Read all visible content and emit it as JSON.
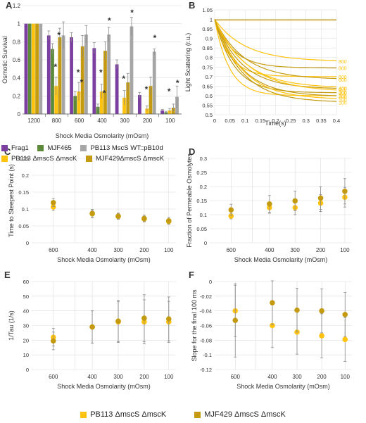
{
  "colors": {
    "frag1": "#7b3fa0",
    "mjf465": "#5d8a3a",
    "wt": "#a6a6a6",
    "pb113": "#ffc20e",
    "mjf429": "#c39a10",
    "grid": "#dcdcdc",
    "axis": "#555555",
    "err": "#8a8a8a"
  },
  "legend_a": [
    "Frag1",
    "MJF465",
    "PB113 MscS WT::pB10d",
    "PB113 ΔmscS ΔmscK",
    "MJF429ΔmscS ΔmscK"
  ],
  "legend_bottom": [
    "PB113 ΔmscS ΔmscK",
    "MJF429 ΔmscS ΔmscK"
  ],
  "chart_data": [
    {
      "panel": "A",
      "type": "bar",
      "ylabel": "Osmotic Survival",
      "xlabel": "Shock Media Osmolarity (mOsm)",
      "categories": [
        "1200",
        "800",
        "600",
        "400",
        "300",
        "200",
        "100"
      ],
      "ylim": [
        0,
        1.2
      ],
      "yticks": [
        "0",
        "0.2",
        "0.4",
        "0.6",
        "0.8",
        "1",
        "1.2"
      ],
      "series": [
        {
          "name": "Frag1",
          "values": [
            1.0,
            0.87,
            0.85,
            0.73,
            0.55,
            0.21,
            0.04
          ],
          "errors": [
            0,
            0.05,
            0.05,
            0.06,
            0.05,
            0.03,
            0.01
          ]
        },
        {
          "name": "MJF465",
          "values": [
            1.0,
            0.72,
            0.2,
            0.08,
            0.0,
            0.0,
            0.02
          ],
          "errors": [
            0,
            0.06,
            0.05,
            0.03,
            0,
            0,
            0.01
          ]
        },
        {
          "name": "PB113 MscS WT::pB10d",
          "values": [
            1.0,
            0.87,
            0.88,
            0.88,
            0.97,
            0.69,
            0.19
          ],
          "errors": [
            0,
            0.15,
            0.1,
            0.08,
            0.1,
            0.03,
            0.12
          ]
        },
        {
          "name": "PB113 ΔmscS ΔmscK",
          "values": [
            1.0,
            0.31,
            0.25,
            0.25,
            0.18,
            0.06,
            0.04
          ],
          "errors": [
            0,
            0.1,
            0.1,
            0.08,
            0.08,
            0.03,
            0.02
          ]
        },
        {
          "name": "MJF429ΔmscS ΔmscK",
          "values": [
            1.0,
            0.85,
            0.75,
            0.7,
            0.35,
            0.31,
            0.07
          ],
          "errors": [
            0,
            0.1,
            0.12,
            0.1,
            0.1,
            0.1,
            0.04
          ]
        }
      ],
      "stars": [
        "*"
      ]
    },
    {
      "panel": "B",
      "type": "line",
      "ylabel": "Light Scattering (r.u.)",
      "xlabel": "Time(s)",
      "xlim": [
        0,
        0.4
      ],
      "ylim": [
        0.5,
        1.05
      ],
      "xticks": [
        "0",
        "0.05",
        "0.1",
        "0.15",
        "0.2",
        "0.25",
        "0.3",
        "0.35",
        "0.4"
      ],
      "yticks": [
        "0.5",
        "0.55",
        "0.6",
        "0.65",
        "0.7",
        "0.75",
        "0.8",
        "0.85",
        "0.9",
        "0.95",
        "1",
        "1.05"
      ],
      "series": [
        {
          "label": "800",
          "end": 0.78
        },
        {
          "label": "800",
          "end": 0.745
        },
        {
          "label": "600",
          "end": 0.7
        },
        {
          "label": "600",
          "end": 0.685
        },
        {
          "label": "400",
          "end": 0.64
        },
        {
          "label": "400",
          "end": 0.635
        },
        {
          "label": "300",
          "end": 0.62
        },
        {
          "label": "300",
          "end": 0.615
        },
        {
          "label": "200",
          "end": 0.6
        },
        {
          "label": "200",
          "end": 0.595
        },
        {
          "label": "100",
          "end": 0.58
        },
        {
          "label": "100",
          "end": 0.565
        }
      ]
    },
    {
      "panel": "C",
      "type": "scatter",
      "ylabel": "Time to Steepest Point (s)",
      "xlabel": "Shock Media Osmolarity (mOsm)",
      "categories": [
        "600",
        "400",
        "300",
        "200",
        "100"
      ],
      "ylim": [
        0,
        0.25
      ],
      "series": [
        {
          "name": "PB113 ΔmscS ΔmscK",
          "values": [
            0.106,
            0.086,
            0.078,
            0.071,
            0.063
          ],
          "errors": [
            0.01,
            0.01,
            0.008,
            0.008,
            0.008
          ]
        },
        {
          "name": "MJF429 ΔmscS ΔmscK",
          "values": [
            0.119,
            0.087,
            0.079,
            0.072,
            0.065
          ],
          "errors": [
            0.012,
            0.012,
            0.009,
            0.01,
            0.01
          ]
        }
      ]
    },
    {
      "panel": "D",
      "type": "scatter",
      "ylabel": "Fraction of Permeable Osmolytes",
      "xlabel": "Shock Media Osmolarity (mOsm)",
      "categories": [
        "600",
        "400",
        "300",
        "200",
        "100"
      ],
      "ylim": [
        0,
        0.3
      ],
      "series": [
        {
          "name": "PB113 ΔmscS ΔmscK",
          "values": [
            0.095,
            0.125,
            0.125,
            0.141,
            0.162
          ],
          "errors": [
            0.01,
            0.02,
            0.025,
            0.03,
            0.035
          ]
        },
        {
          "name": "MJF429 ΔmscS ΔmscK",
          "values": [
            0.117,
            0.138,
            0.149,
            0.159,
            0.183
          ],
          "errors": [
            0.02,
            0.03,
            0.035,
            0.04,
            0.045
          ]
        }
      ]
    },
    {
      "panel": "E",
      "type": "scatter",
      "ylabel": "1/Tau (1/s)",
      "xlabel": "Shock Media Osmolarity (mOsm)",
      "categories": [
        "600",
        "400",
        "300",
        "200",
        "100"
      ],
      "ylim": [
        0,
        60
      ],
      "series": [
        {
          "name": "PB113 ΔmscS ΔmscK",
          "values": [
            22,
            29,
            32.5,
            32.5,
            32.5
          ],
          "errors": [
            6,
            11,
            14,
            15,
            14
          ]
        },
        {
          "name": "MJF429 ΔmscS ΔmscK",
          "values": [
            19.5,
            29,
            33,
            35,
            34.5
          ],
          "errors": [
            6,
            11,
            14,
            16,
            15
          ]
        }
      ]
    },
    {
      "panel": "F",
      "type": "scatter",
      "ylabel": "Slope for the final 100 ms",
      "xlabel": "Shock Media Osmolarity (mOsm)",
      "categories": [
        "600",
        "400",
        "300",
        "200",
        "100"
      ],
      "ylim": [
        -0.12,
        0
      ],
      "yticks": [
        "0",
        "-0.02",
        "-0.04",
        "-0.06",
        "-0.08",
        "-0.1",
        "-0.12"
      ],
      "series": [
        {
          "name": "PB113 ΔmscS ΔmscK",
          "values": [
            -0.04,
            -0.06,
            -0.069,
            -0.074,
            -0.079
          ],
          "errors": [
            0.035,
            0.03,
            0.03,
            0.03,
            0.03
          ]
        },
        {
          "name": "MJF429 ΔmscS ΔmscK",
          "values": [
            -0.053,
            -0.029,
            -0.039,
            -0.04,
            -0.045
          ],
          "errors": [
            0.05,
            0.03,
            0.03,
            0.03,
            0.03
          ]
        }
      ]
    }
  ],
  "panel_labels": [
    "A",
    "B",
    "C",
    "D",
    "E",
    "F"
  ],
  "tick_labels": {
    "C": [
      "0",
      "0.05",
      "0.1",
      "0.15",
      "0.2",
      "0.25"
    ],
    "D": [
      "0",
      "0.05",
      "0.1",
      "0.15",
      "0.2",
      "0.25",
      "0.3"
    ],
    "E": [
      "0",
      "10",
      "20",
      "30",
      "40",
      "50",
      "60"
    ]
  }
}
